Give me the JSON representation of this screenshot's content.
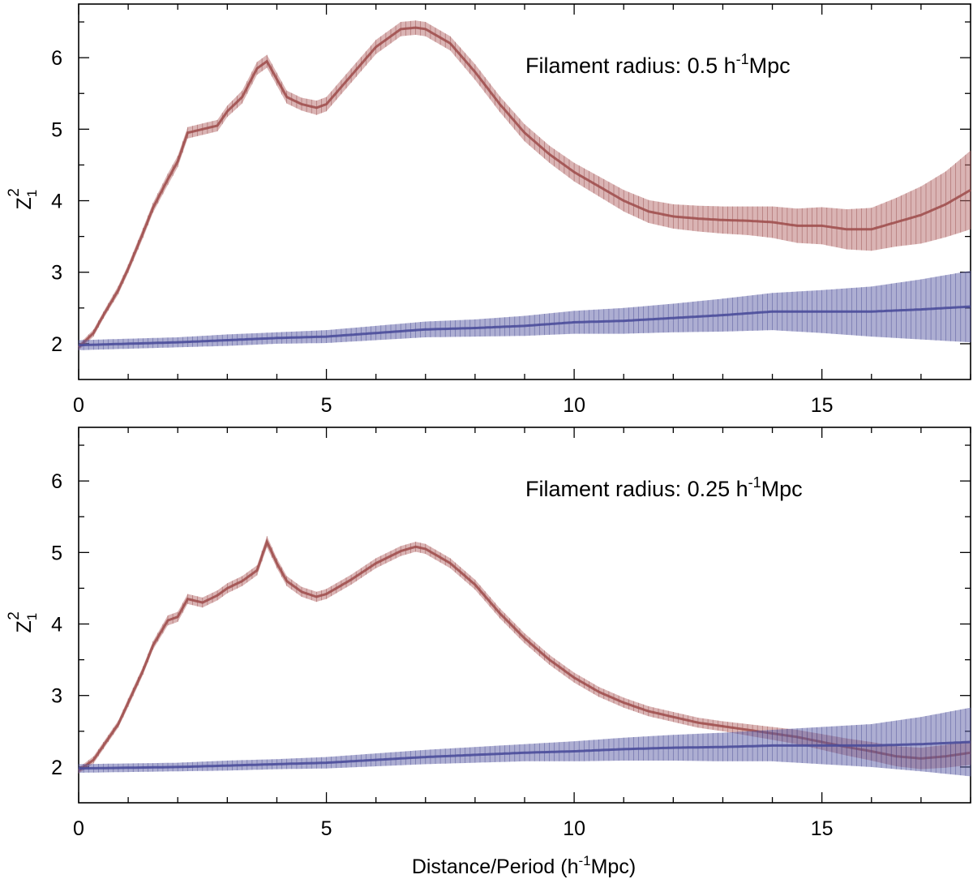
{
  "figure": {
    "xlabel_main": "Distance/Period (h",
    "xlabel_sup": "-1",
    "xlabel_tail": "Mpc)"
  },
  "chart_data": [
    {
      "type": "line",
      "annotation": {
        "main": "Filament radius: 0.5 h",
        "sup": "-1",
        "tail": "Mpc"
      },
      "ylabel": {
        "base": "Z",
        "sub": "1",
        "sup": "2"
      },
      "xlim": [
        0,
        18
      ],
      "ylim": [
        1.5,
        6.75
      ],
      "xticks": [
        "0",
        "5",
        "10",
        "15"
      ],
      "yticks": [
        "2",
        "3",
        "4",
        "5",
        "6"
      ],
      "series": [
        {
          "name": "red",
          "color": "#b56a69",
          "x": [
            0,
            0.3,
            0.5,
            0.8,
            1.0,
            1.3,
            1.5,
            1.8,
            2.0,
            2.2,
            2.5,
            2.8,
            3.0,
            3.3,
            3.6,
            3.8,
            4.0,
            4.2,
            4.5,
            4.8,
            5.0,
            5.5,
            6.0,
            6.5,
            6.8,
            7.0,
            7.5,
            8.0,
            8.5,
            9.0,
            9.5,
            10.0,
            10.5,
            11.0,
            11.5,
            12.0,
            12.5,
            13.0,
            13.5,
            14.0,
            14.5,
            15.0,
            15.5,
            16.0,
            16.5,
            17.0,
            17.5,
            18.0
          ],
          "y": [
            1.95,
            2.15,
            2.4,
            2.75,
            3.05,
            3.55,
            3.9,
            4.3,
            4.55,
            4.95,
            5.0,
            5.05,
            5.25,
            5.45,
            5.85,
            5.95,
            5.7,
            5.45,
            5.35,
            5.3,
            5.35,
            5.75,
            6.15,
            6.4,
            6.42,
            6.4,
            6.2,
            5.8,
            5.35,
            4.95,
            4.65,
            4.4,
            4.2,
            4.0,
            3.85,
            3.78,
            3.75,
            3.73,
            3.72,
            3.7,
            3.65,
            3.65,
            3.6,
            3.6,
            3.7,
            3.8,
            3.95,
            4.15
          ],
          "err": [
            0.04,
            0.05,
            0.05,
            0.06,
            0.06,
            0.07,
            0.07,
            0.08,
            0.08,
            0.08,
            0.08,
            0.08,
            0.08,
            0.09,
            0.09,
            0.09,
            0.09,
            0.09,
            0.09,
            0.1,
            0.1,
            0.1,
            0.1,
            0.1,
            0.1,
            0.1,
            0.1,
            0.11,
            0.11,
            0.12,
            0.12,
            0.13,
            0.14,
            0.15,
            0.16,
            0.17,
            0.18,
            0.19,
            0.2,
            0.22,
            0.24,
            0.26,
            0.28,
            0.3,
            0.34,
            0.4,
            0.46,
            0.55
          ]
        },
        {
          "name": "blue",
          "color": "#5b5ea6",
          "x": [
            0,
            1,
            2,
            3,
            4,
            5,
            6,
            7,
            8,
            9,
            10,
            11,
            12,
            13,
            14,
            15,
            16,
            17,
            18
          ],
          "y": [
            1.98,
            2.0,
            2.02,
            2.05,
            2.08,
            2.1,
            2.15,
            2.2,
            2.22,
            2.25,
            2.3,
            2.32,
            2.36,
            2.4,
            2.45,
            2.45,
            2.45,
            2.48,
            2.52
          ],
          "err": [
            0.07,
            0.07,
            0.07,
            0.08,
            0.08,
            0.09,
            0.1,
            0.11,
            0.12,
            0.14,
            0.16,
            0.18,
            0.2,
            0.23,
            0.26,
            0.3,
            0.35,
            0.42,
            0.5
          ]
        }
      ]
    },
    {
      "type": "line",
      "annotation": {
        "main": "Filament radius: 0.25 h",
        "sup": "-1",
        "tail": "Mpc"
      },
      "ylabel": {
        "base": "Z",
        "sub": "1",
        "sup": "2"
      },
      "xlim": [
        0,
        18
      ],
      "ylim": [
        1.5,
        6.75
      ],
      "xticks": [
        "0",
        "5",
        "10",
        "15"
      ],
      "yticks": [
        "2",
        "3",
        "4",
        "5",
        "6"
      ],
      "series": [
        {
          "name": "red",
          "color": "#b56a69",
          "x": [
            0,
            0.3,
            0.5,
            0.8,
            1.0,
            1.3,
            1.5,
            1.8,
            2.0,
            2.2,
            2.5,
            2.8,
            3.0,
            3.3,
            3.6,
            3.8,
            4.0,
            4.2,
            4.5,
            4.8,
            5.0,
            5.5,
            6.0,
            6.5,
            6.8,
            7.0,
            7.5,
            8.0,
            8.5,
            9.0,
            9.5,
            10.0,
            10.5,
            11.0,
            11.5,
            12.0,
            12.5,
            13.0,
            13.5,
            14.0,
            14.5,
            15.0,
            15.5,
            16.0,
            16.5,
            17.0,
            17.5,
            18.0
          ],
          "y": [
            1.95,
            2.1,
            2.3,
            2.6,
            2.9,
            3.35,
            3.7,
            4.05,
            4.1,
            4.35,
            4.3,
            4.4,
            4.5,
            4.6,
            4.75,
            5.15,
            4.85,
            4.6,
            4.45,
            4.38,
            4.42,
            4.62,
            4.85,
            5.02,
            5.08,
            5.05,
            4.85,
            4.55,
            4.15,
            3.8,
            3.5,
            3.25,
            3.05,
            2.9,
            2.78,
            2.7,
            2.62,
            2.57,
            2.52,
            2.47,
            2.42,
            2.35,
            2.28,
            2.22,
            2.15,
            2.12,
            2.15,
            2.2
          ],
          "err": [
            0.04,
            0.05,
            0.05,
            0.05,
            0.06,
            0.06,
            0.06,
            0.07,
            0.07,
            0.07,
            0.07,
            0.07,
            0.07,
            0.07,
            0.07,
            0.08,
            0.07,
            0.07,
            0.07,
            0.07,
            0.07,
            0.07,
            0.07,
            0.07,
            0.07,
            0.07,
            0.07,
            0.07,
            0.07,
            0.07,
            0.07,
            0.07,
            0.07,
            0.07,
            0.07,
            0.07,
            0.07,
            0.07,
            0.08,
            0.09,
            0.1,
            0.11,
            0.12,
            0.13,
            0.14,
            0.15,
            0.16,
            0.17
          ]
        },
        {
          "name": "blue",
          "color": "#5b5ea6",
          "x": [
            0,
            1,
            2,
            3,
            4,
            5,
            6,
            7,
            8,
            9,
            10,
            11,
            12,
            13,
            14,
            15,
            16,
            17,
            18
          ],
          "y": [
            1.98,
            1.99,
            2.0,
            2.02,
            2.04,
            2.06,
            2.1,
            2.14,
            2.17,
            2.2,
            2.22,
            2.25,
            2.27,
            2.28,
            2.3,
            2.3,
            2.3,
            2.32,
            2.35
          ],
          "err": [
            0.06,
            0.06,
            0.06,
            0.07,
            0.07,
            0.08,
            0.09,
            0.1,
            0.11,
            0.12,
            0.14,
            0.16,
            0.18,
            0.2,
            0.22,
            0.26,
            0.3,
            0.38,
            0.48
          ]
        }
      ]
    }
  ]
}
